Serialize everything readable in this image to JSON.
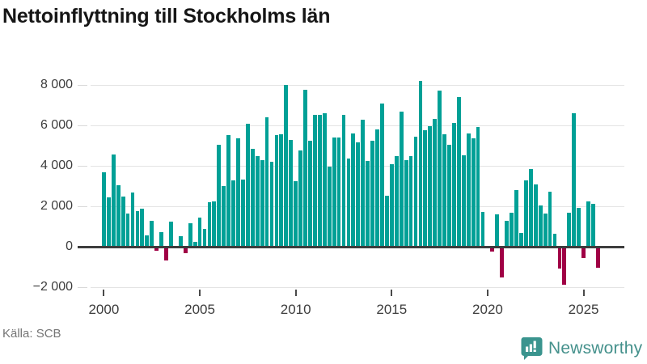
{
  "title": "Nettoinflyttning till Stockholms län",
  "source": "Källa: SCB",
  "branding": {
    "logo_text": "Newsworthy",
    "logo_icon": "bar-chart-speech-bubble-icon"
  },
  "colors": {
    "positive_bar": "#00a096",
    "negative_bar": "#a00045",
    "zero_line": "#3d3d3d",
    "gridline": "#e4e4e4",
    "title_text": "#161616",
    "axis_text": "#3d3d3d",
    "source_text": "#757575",
    "logo": "#3a948e"
  },
  "chart_data": {
    "type": "bar",
    "title": "Nettoinflyttning till Stockholms län",
    "frequency": "quarterly",
    "grid": "horizontal",
    "legend": "none",
    "x_tick_labels": [
      "2000",
      "2005",
      "2010",
      "2015",
      "2020",
      "2025"
    ],
    "y_tick_labels": [
      "8 000",
      "6 000",
      "4 000",
      "2 000",
      "0",
      "−2 000"
    ],
    "y_tick_values": [
      8000,
      6000,
      4000,
      2000,
      0,
      -2000
    ],
    "ylim": [
      -2200,
      8400
    ],
    "series": [
      {
        "year": 2000,
        "values": [
          3700,
          2450,
          4550,
          3050
        ]
      },
      {
        "year": 2001,
        "values": [
          2500,
          1650,
          2700,
          1750
        ]
      },
      {
        "year": 2002,
        "values": [
          1870,
          560,
          1280,
          -160
        ]
      },
      {
        "year": 2003,
        "values": [
          720,
          -630,
          1230,
          0
        ]
      },
      {
        "year": 2004,
        "values": [
          510,
          -260,
          1160,
          250
        ]
      },
      {
        "year": 2005,
        "values": [
          1430,
          890,
          2200,
          2230
        ]
      },
      {
        "year": 2006,
        "values": [
          5040,
          3000,
          5510,
          3270
        ]
      },
      {
        "year": 2007,
        "values": [
          5360,
          3330,
          6070,
          4840
        ]
      },
      {
        "year": 2008,
        "values": [
          4470,
          4270,
          6400,
          4200
        ]
      },
      {
        "year": 2009,
        "values": [
          5530,
          5560,
          8000,
          5270
        ]
      },
      {
        "year": 2010,
        "values": [
          3230,
          4770,
          7770,
          5230
        ]
      },
      {
        "year": 2011,
        "values": [
          6510,
          6530,
          6600,
          3960
        ]
      },
      {
        "year": 2012,
        "values": [
          5400,
          5400,
          6510,
          4370
        ]
      },
      {
        "year": 2013,
        "values": [
          5600,
          5170,
          6290,
          4240
        ]
      },
      {
        "year": 2014,
        "values": [
          5230,
          5800,
          7090,
          2530
        ]
      },
      {
        "year": 2015,
        "values": [
          4070,
          4490,
          6690,
          4270
        ]
      },
      {
        "year": 2016,
        "values": [
          4470,
          5440,
          8200,
          5760
        ]
      },
      {
        "year": 2017,
        "values": [
          5970,
          6330,
          7730,
          5570
        ]
      },
      {
        "year": 2018,
        "values": [
          5040,
          6130,
          7400,
          4530
        ]
      },
      {
        "year": 2019,
        "values": [
          5600,
          5370,
          5910,
          1730
        ]
      },
      {
        "year": 2020,
        "values": [
          0,
          -200,
          1600,
          -1470
        ]
      },
      {
        "year": 2021,
        "values": [
          1270,
          1670,
          2800,
          670
        ]
      },
      {
        "year": 2022,
        "values": [
          3300,
          3830,
          3070,
          2030
        ]
      },
      {
        "year": 2023,
        "values": [
          1630,
          2730,
          630,
          -1040
        ]
      },
      {
        "year": 2024,
        "values": [
          -1840,
          1690,
          6600,
          1910
        ]
      },
      {
        "year": 2025,
        "values": [
          -530,
          2230,
          2130,
          -1000
        ]
      }
    ]
  }
}
